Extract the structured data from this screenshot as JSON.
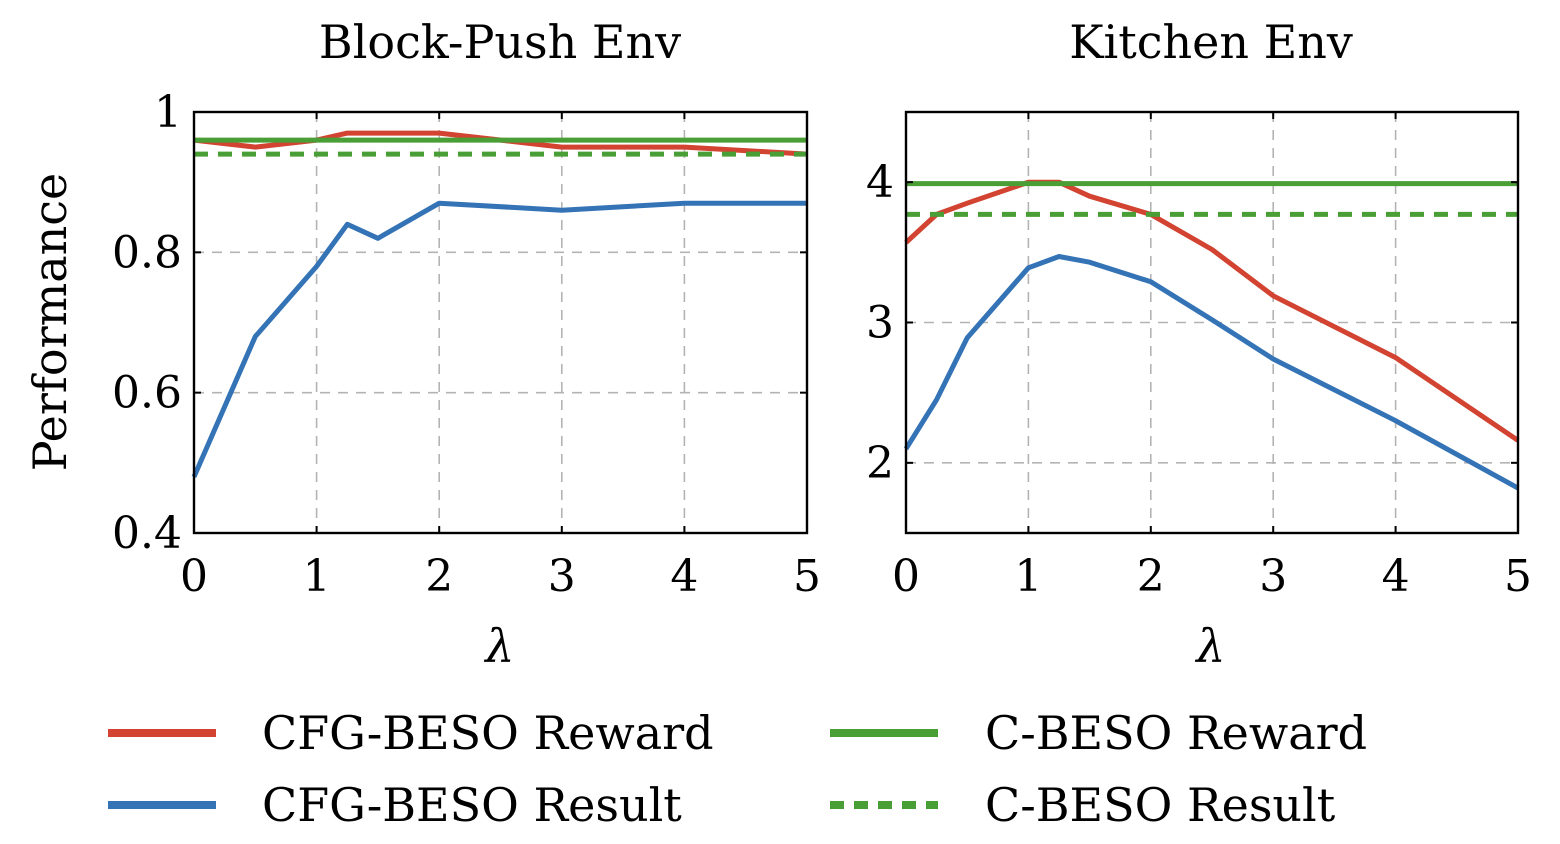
{
  "colors": {
    "cfg_reward": "#d24331",
    "cfg_result": "#3473b5",
    "c_reward": "#4a9e36",
    "c_result": "#4a9e36"
  },
  "legend": [
    {
      "label": "CFG-BESO Reward",
      "color": "#d24331",
      "style": "solid"
    },
    {
      "label": "C-BESO Reward",
      "color": "#4a9e36",
      "style": "solid"
    },
    {
      "label": "CFG-BESO Result",
      "color": "#3473b5",
      "style": "solid"
    },
    {
      "label": "C-BESO Result",
      "color": "#4a9e36",
      "style": "dashed"
    }
  ],
  "chart_data": [
    {
      "type": "line",
      "title": "Block-Push Env",
      "xlabel": "λ",
      "ylabel": "Performance",
      "xlim": [
        0,
        5
      ],
      "ylim": [
        0.4,
        1.0
      ],
      "xticks": [
        0,
        1,
        2,
        3,
        4,
        5
      ],
      "xtick_labels": [
        "0",
        "1",
        "2",
        "3",
        "4",
        "5"
      ],
      "yticks": [
        0.4,
        0.6,
        0.8,
        1.0
      ],
      "ytick_labels": [
        "0.4",
        "0.6",
        "0.8",
        "1"
      ],
      "grid": true,
      "series": [
        {
          "name": "CFG-BESO Reward",
          "style": "solid",
          "x": [
            0,
            0.5,
            1,
            1.25,
            1.5,
            2,
            3,
            4,
            5
          ],
          "y": [
            0.96,
            0.95,
            0.96,
            0.97,
            0.97,
            0.97,
            0.95,
            0.95,
            0.94
          ]
        },
        {
          "name": "CFG-BESO Result",
          "style": "solid",
          "x": [
            0,
            0.5,
            1,
            1.25,
            1.5,
            2,
            3,
            4,
            5
          ],
          "y": [
            0.48,
            0.68,
            0.78,
            0.84,
            0.82,
            0.87,
            0.86,
            0.87,
            0.87
          ]
        },
        {
          "name": "C-BESO Reward",
          "style": "solid",
          "x": [
            0,
            5
          ],
          "y": [
            0.96,
            0.96
          ]
        },
        {
          "name": "C-BESO Result",
          "style": "dashed",
          "x": [
            0,
            5
          ],
          "y": [
            0.94,
            0.94
          ]
        }
      ]
    },
    {
      "type": "line",
      "title": "Kitchen Env",
      "xlabel": "λ",
      "ylabel": "",
      "xlim": [
        0,
        5
      ],
      "ylim": [
        1.5,
        4.5
      ],
      "xticks": [
        0,
        1,
        2,
        3,
        4,
        5
      ],
      "xtick_labels": [
        "0",
        "1",
        "2",
        "3",
        "4",
        "5"
      ],
      "yticks": [
        2,
        3,
        4
      ],
      "ytick_labels": [
        "2",
        "3",
        "4"
      ],
      "grid": true,
      "series": [
        {
          "name": "CFG-BESO Reward",
          "style": "solid",
          "x": [
            0,
            0.25,
            0.5,
            1,
            1.25,
            1.5,
            2,
            2.5,
            3,
            4,
            5
          ],
          "y": [
            3.57,
            3.77,
            3.85,
            4.0,
            4.0,
            3.9,
            3.77,
            3.52,
            3.19,
            2.75,
            2.16
          ]
        },
        {
          "name": "CFG-BESO Result",
          "style": "solid",
          "x": [
            0,
            0.25,
            0.5,
            1,
            1.25,
            1.5,
            2,
            2.5,
            3,
            4,
            5
          ],
          "y": [
            2.1,
            2.45,
            2.89,
            3.39,
            3.47,
            3.43,
            3.29,
            3.02,
            2.74,
            2.3,
            1.82
          ]
        },
        {
          "name": "C-BESO Reward",
          "style": "solid",
          "x": [
            0,
            5
          ],
          "y": [
            3.99,
            3.99
          ]
        },
        {
          "name": "C-BESO Result",
          "style": "dashed",
          "x": [
            0,
            5
          ],
          "y": [
            3.77,
            3.77
          ]
        }
      ]
    }
  ]
}
